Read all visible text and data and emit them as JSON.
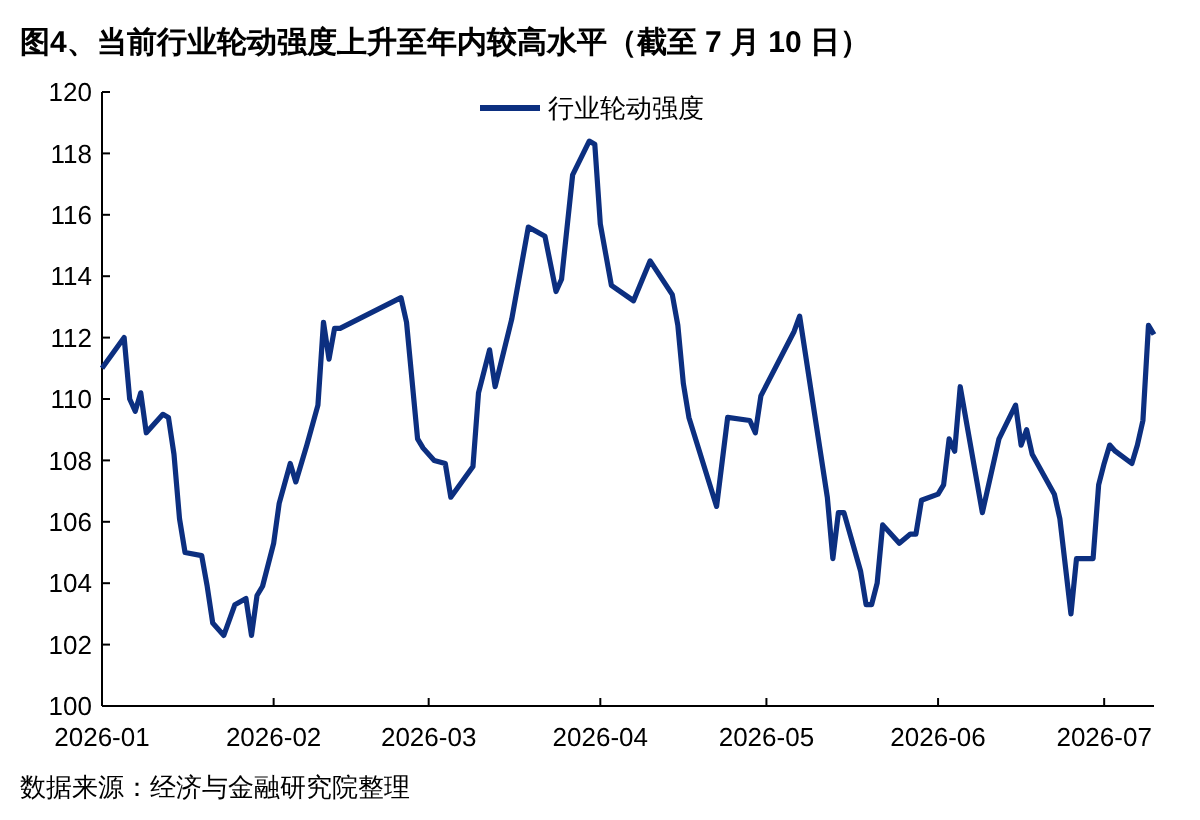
{
  "chart_data": {
    "type": "line",
    "title": "图4、当前行业轮动强度上升至年内较高水平（截至 7 月 10 日）",
    "annotations": [
      "数据来源：经济与金融研究院整理"
    ],
    "x": [
      "2026-01-01",
      "2026-01-05",
      "2026-01-06",
      "2026-01-07",
      "2026-01-08",
      "2026-01-09",
      "2026-01-12",
      "2026-01-13",
      "2026-01-14",
      "2026-01-15",
      "2026-01-16",
      "2026-01-19",
      "2026-01-20",
      "2026-01-21",
      "2026-01-23",
      "2026-01-25",
      "2026-01-27",
      "2026-01-28",
      "2026-01-29",
      "2026-01-30",
      "2026-02-01",
      "2026-02-02",
      "2026-02-04",
      "2026-02-05",
      "2026-02-07",
      "2026-02-09",
      "2026-02-10",
      "2026-02-11",
      "2026-02-12",
      "2026-02-13",
      "2026-02-24",
      "2026-02-25",
      "2026-02-27",
      "2026-02-28",
      "2026-03-02",
      "2026-03-04",
      "2026-03-05",
      "2026-03-09",
      "2026-03-10",
      "2026-03-12",
      "2026-03-13",
      "2026-03-16",
      "2026-03-19",
      "2026-03-22",
      "2026-03-24",
      "2026-03-25",
      "2026-03-27",
      "2026-03-30",
      "2026-03-31",
      "2026-04-01",
      "2026-04-03",
      "2026-04-07",
      "2026-04-10",
      "2026-04-14",
      "2026-04-15",
      "2026-04-16",
      "2026-04-17",
      "2026-04-22",
      "2026-04-24",
      "2026-04-28",
      "2026-04-29",
      "2026-04-30",
      "2026-05-06",
      "2026-05-07",
      "2026-05-12",
      "2026-05-13",
      "2026-05-14",
      "2026-05-15",
      "2026-05-18",
      "2026-05-19",
      "2026-05-20",
      "2026-05-21",
      "2026-05-22",
      "2026-05-25",
      "2026-05-27",
      "2026-05-28",
      "2026-05-29",
      "2026-06-01",
      "2026-06-02",
      "2026-06-03",
      "2026-06-04",
      "2026-06-05",
      "2026-06-09",
      "2026-06-12",
      "2026-06-15",
      "2026-06-16",
      "2026-06-17",
      "2026-06-18",
      "2026-06-22",
      "2026-06-23",
      "2026-06-25",
      "2026-06-26",
      "2026-06-29",
      "2026-06-30",
      "2026-07-01",
      "2026-07-02",
      "2026-07-03",
      "2026-07-06",
      "2026-07-07",
      "2026-07-08",
      "2026-07-09",
      "2026-07-10"
    ],
    "series": [
      {
        "name": "行业轮动强度",
        "color": "#0c2f80",
        "values": [
          111.0,
          112.0,
          110.0,
          109.6,
          110.2,
          108.9,
          109.5,
          109.4,
          108.2,
          106.1,
          105.0,
          104.9,
          103.9,
          102.7,
          102.3,
          103.3,
          103.5,
          102.3,
          103.6,
          103.9,
          105.3,
          106.6,
          107.9,
          107.3,
          108.5,
          109.8,
          112.5,
          111.3,
          112.3,
          112.3,
          113.3,
          112.5,
          108.7,
          108.4,
          108.0,
          107.9,
          106.8,
          107.8,
          110.2,
          111.6,
          110.4,
          112.6,
          115.6,
          115.3,
          113.5,
          113.9,
          117.3,
          118.4,
          118.3,
          115.7,
          113.7,
          113.2,
          114.5,
          113.4,
          112.4,
          110.5,
          109.4,
          106.5,
          109.4,
          109.3,
          108.9,
          110.1,
          112.2,
          112.7,
          106.8,
          104.8,
          106.3,
          106.3,
          104.4,
          103.3,
          103.3,
          104.0,
          105.9,
          105.3,
          105.6,
          105.6,
          106.7,
          106.9,
          107.2,
          108.7,
          108.3,
          110.4,
          106.3,
          108.7,
          109.8,
          108.5,
          109.0,
          108.2,
          106.9,
          106.1,
          103.0,
          104.8,
          104.8,
          107.2,
          107.9,
          108.5,
          108.3,
          107.9,
          108.5,
          109.3,
          112.4,
          112.1
        ]
      }
    ],
    "xlim": [
      "2026-01-01",
      "2026-07-10"
    ],
    "xticks": [
      "2026-01",
      "2026-02",
      "2026-03",
      "2026-04",
      "2026-05",
      "2026-06",
      "2026-07"
    ],
    "ylim": [
      100,
      120
    ],
    "yticks": [
      100,
      102,
      104,
      106,
      108,
      110,
      112,
      114,
      116,
      118,
      120
    ],
    "grid": false,
    "legend": "top",
    "line_style": "solid",
    "marker": "none"
  }
}
